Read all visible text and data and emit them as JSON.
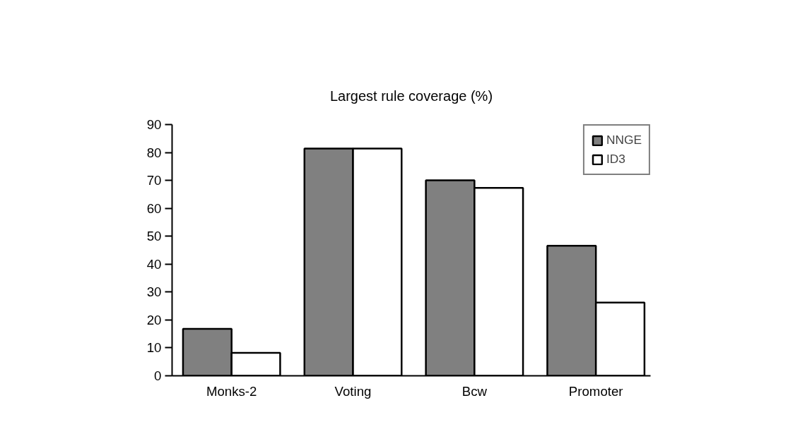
{
  "chart_data": {
    "type": "bar",
    "title": "Largest rule coverage (%)",
    "categories": [
      "Monks-2",
      "Voting",
      "Bcw",
      "Promoter"
    ],
    "series": [
      {
        "name": "NNGE",
        "color": "#808080",
        "values": [
          16.8,
          81.4,
          70.0,
          46.6
        ]
      },
      {
        "name": "ID3",
        "color": "#ffffff",
        "values": [
          8.2,
          81.4,
          67.3,
          26.2
        ]
      }
    ],
    "ylim": [
      0,
      90
    ],
    "yticks": [
      0,
      10,
      20,
      30,
      40,
      50,
      60,
      70,
      80,
      90
    ],
    "grid": false,
    "legend": "top right"
  }
}
